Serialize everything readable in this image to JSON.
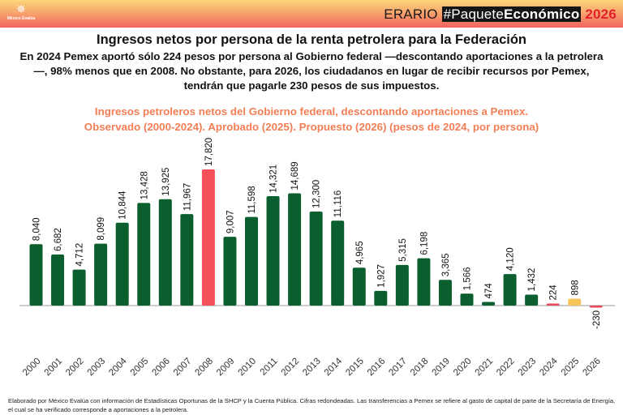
{
  "header": {
    "logo_text": "México Evalúa",
    "brand_erario": "ERARIO",
    "brand_hash": "#Paquete",
    "brand_bold": "Económico",
    "brand_year": "2026"
  },
  "title": "Ingresos netos por persona de la renta petrolera para la Federación",
  "subtitle": "En 2024 Pemex aportó sólo 224 pesos por persona al Gobierno federal —descontando aportaciones a la petrolera—, 98% menos que en 2008. No obstante, para 2026, los ciudadanos en lugar de recibir recursos por Pemex, tendrán que pagarle 230 pesos de sus impuestos.",
  "chart_data": {
    "type": "bar",
    "title": "Ingresos petroleros netos del Gobierno federal, descontando aportaciones a Pemex.",
    "subtitle": "Observado (2000-2024). Aprobado (2025). Propuesto (2026) (pesos de 2024, por persona)",
    "categories": [
      "2000",
      "2001",
      "2002",
      "2003",
      "2004",
      "2005",
      "2006",
      "2007",
      "2008",
      "2009",
      "2010",
      "2011",
      "2012",
      "2013",
      "2014",
      "2015",
      "2016",
      "2017",
      "2018",
      "2019",
      "2020",
      "2021",
      "2022",
      "2023",
      "2024",
      "2025",
      "2026"
    ],
    "values": [
      8040,
      6682,
      4712,
      8099,
      10844,
      13428,
      13925,
      11967,
      17820,
      9007,
      11598,
      14321,
      14689,
      12300,
      11116,
      4965,
      1927,
      5315,
      6198,
      3365,
      1566,
      474,
      4120,
      1432,
      224,
      898,
      -230
    ],
    "labels": [
      "8,040",
      "6,682",
      "4,712",
      "8,099",
      "10,844",
      "13,428",
      "13,925",
      "11,967",
      "17,820",
      "9,007",
      "11,598",
      "14,321",
      "14,689",
      "12,300",
      "11,116",
      "4,965",
      "1,927",
      "5,315",
      "6,198",
      "3,365",
      "1,566",
      "474",
      "4,120",
      "1,432",
      "224",
      "898",
      "-230"
    ],
    "colors": {
      "default": "#0b5e2e",
      "2008": "#f4505a",
      "2024": "#e8485a",
      "2025": "#f5c55a",
      "2026": "#e8485a"
    },
    "ylim": [
      -230,
      17820
    ],
    "grid": false,
    "legend": "none"
  },
  "footer": "Elaborado por México Evalúa con información de Estadísticas Oportunas de la SHCP y la Cuenta Pública. Cifras redondeadas. Las transferencias a Pemex se refiere al gasto de capital de parte de la Secretaría de Energía, el cual se ha verificado corresponde a aportaciones a la petrolera."
}
